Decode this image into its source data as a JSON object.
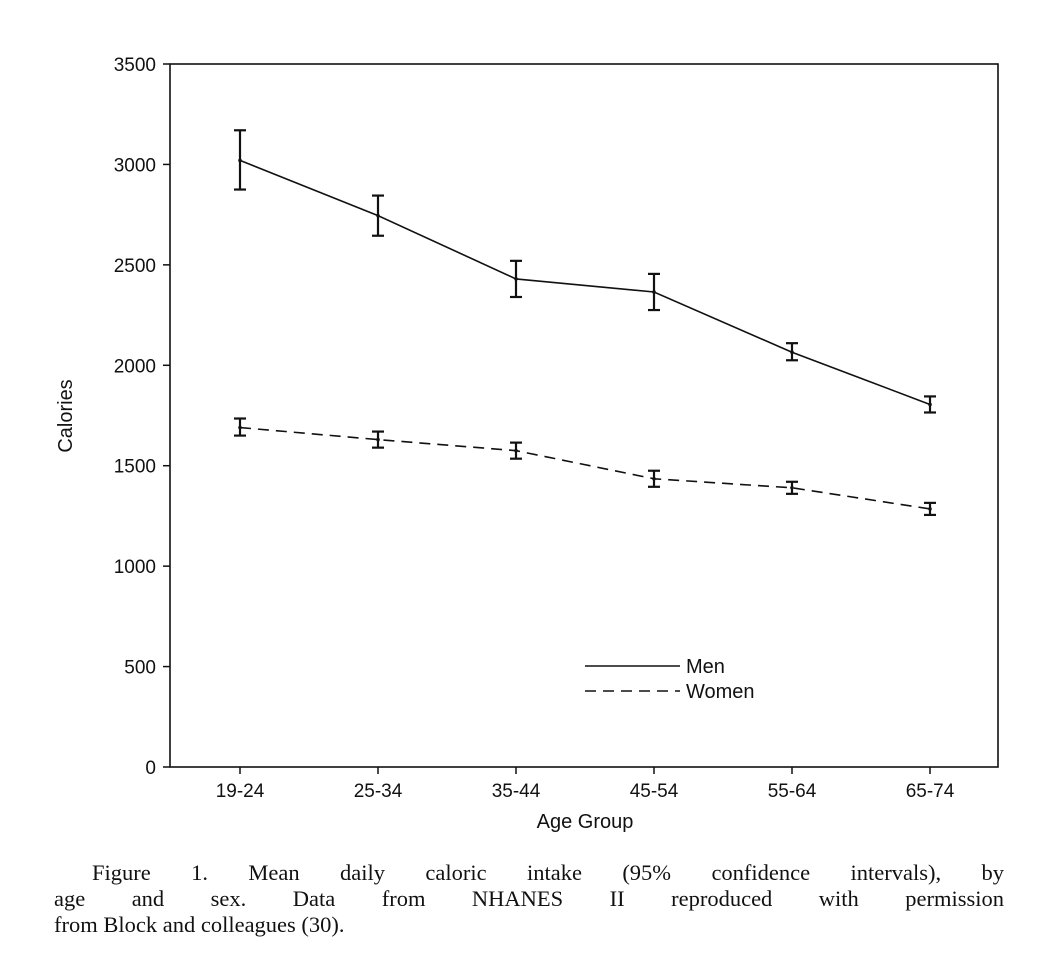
{
  "chart_data": {
    "type": "line",
    "categories": [
      "19-24",
      "25-34",
      "35-44",
      "45-54",
      "55-64",
      "65-74"
    ],
    "xlabel": "Age Group",
    "ylabel": "Calories",
    "ylim": [
      0,
      3500
    ],
    "yticks": [
      0,
      500,
      1000,
      1500,
      2000,
      2500,
      3000,
      3500
    ],
    "grid": false,
    "legend_position": "bottom-right",
    "series": [
      {
        "name": "Men",
        "line_style": "solid",
        "values": [
          3020,
          2745,
          2430,
          2365,
          2065,
          1805
        ],
        "lower": [
          2875,
          2645,
          2340,
          2275,
          2025,
          1765
        ],
        "upper": [
          3170,
          2845,
          2520,
          2455,
          2110,
          1845
        ]
      },
      {
        "name": "Women",
        "line_style": "dashed",
        "values": [
          1690,
          1630,
          1575,
          1435,
          1390,
          1285
        ],
        "lower": [
          1650,
          1590,
          1535,
          1395,
          1360,
          1255
        ],
        "upper": [
          1735,
          1670,
          1615,
          1475,
          1420,
          1315
        ]
      }
    ]
  },
  "caption": {
    "line1": "Figure 1. Mean daily caloric intake (95% confidence intervals), by",
    "line2": "age and sex. Data from NHANES II reproduced with permission",
    "line3": "from Block and colleagues (30)."
  }
}
